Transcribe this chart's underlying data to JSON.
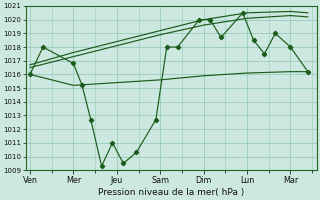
{
  "background_color": "#cce8e0",
  "grid_color": "#99ccbb",
  "line_color": "#1a5c1a",
  "xlabel": "Pression niveau de la mer( hPa )",
  "ylim": [
    1009,
    1021
  ],
  "yticks": [
    1009,
    1010,
    1011,
    1012,
    1013,
    1014,
    1015,
    1016,
    1017,
    1018,
    1019,
    1020,
    1021
  ],
  "xtick_labels": [
    "Ven",
    "Mer",
    "Jeu",
    "Sam",
    "Dim",
    "Lun",
    "Mar"
  ],
  "xtick_positions": [
    0,
    2,
    4,
    6,
    8,
    10,
    12
  ],
  "xlim": [
    -0.2,
    13.2
  ],
  "series_main_x": [
    0,
    0.6,
    2.0,
    2.4,
    2.8,
    3.3,
    3.8,
    4.3,
    4.9,
    5.8,
    6.3,
    6.8,
    7.8,
    8.3,
    8.8,
    9.8,
    10.3,
    10.8,
    11.3,
    12.0,
    12.8
  ],
  "series_main_y": [
    1016,
    1018,
    1016.8,
    1015.2,
    1012.7,
    1009.3,
    1011,
    1009.5,
    1010.3,
    1012.7,
    1018,
    1018,
    1020,
    1020,
    1018.7,
    1020.5,
    1018.5,
    1017.5,
    1019,
    1018,
    1016.2
  ],
  "series_flat_x": [
    0,
    2,
    4,
    6,
    8,
    10,
    12,
    12.8
  ],
  "series_flat_y": [
    1016.0,
    1015.2,
    1015.4,
    1015.6,
    1015.9,
    1016.1,
    1016.2,
    1016.2
  ],
  "series_mid_x": [
    0,
    2,
    4,
    6,
    8,
    10,
    12,
    12.8
  ],
  "series_mid_y": [
    1016.5,
    1017.3,
    1018.1,
    1018.9,
    1019.6,
    1020.1,
    1020.3,
    1020.2
  ],
  "series_top_x": [
    0,
    2,
    4,
    6,
    8,
    10,
    12,
    12.8
  ],
  "series_top_y": [
    1016.7,
    1017.6,
    1018.4,
    1019.2,
    1020.0,
    1020.5,
    1020.6,
    1020.5
  ]
}
